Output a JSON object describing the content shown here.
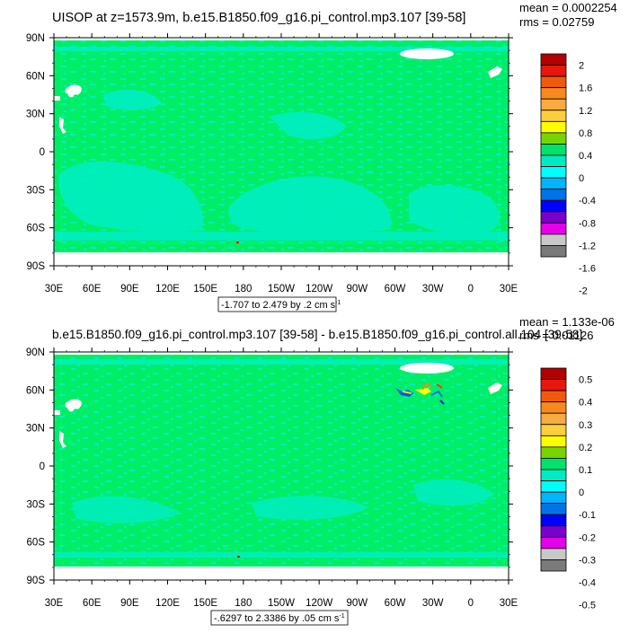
{
  "panels": [
    {
      "title": "UISOP at z=1573.9m, b.e15.B1850.f09_g16.pi_control.mp3.107 [39-58]",
      "mean_label": "mean = 0.0002254",
      "rms_label": "rms = 0.02759",
      "range_label": "-1.707 to 2.479 by .2 cm s",
      "range_exp": "-1",
      "colorbar_labels": [
        "2",
        "1.6",
        "1.2",
        "0.8",
        "0.4",
        "0",
        "-0.4",
        "-0.8",
        "-1.2",
        "-1.6",
        "-2"
      ]
    },
    {
      "title": "b.e15.B1850.f09_g16.pi_control.mp3.107 [39-58] - b.e15.B1850.f09_g16.pi_control.all.104 [39-58]",
      "mean_label": "mean = 1.133e-06",
      "rms_label": "rms = 0.01126",
      "range_label": "-.6297 to 2.3386 by .05 cm s",
      "range_exp": "-1",
      "colorbar_labels": [
        "0.5",
        "0.4",
        "0.3",
        "0.2",
        "0.1",
        "0",
        "-0.1",
        "-0.2",
        "-0.3",
        "-0.4",
        "-0.5"
      ]
    }
  ],
  "axes": {
    "lat_ticks": [
      "90N",
      "60N",
      "30N",
      "0",
      "30S",
      "60S",
      "90S"
    ],
    "lon_ticks": [
      "30E",
      "60E",
      "90E",
      "120E",
      "150E",
      "180",
      "150W",
      "120W",
      "90W",
      "60W",
      "30W",
      "0",
      "30E"
    ]
  },
  "colorbar_colors": [
    "#b20000",
    "#e8160c",
    "#f05a0c",
    "#f68a1e",
    "#f7ab40",
    "#fbcf3c",
    "#fefe00",
    "#78d600",
    "#00e36b",
    "#00ebc4",
    "#00fefe",
    "#00b4fe",
    "#0073e6",
    "#0000fe",
    "#7a00cc",
    "#e600e6",
    "#c8c8c8",
    "#7a7a7a"
  ],
  "chart_data": [
    {
      "type": "heatmap",
      "title": "UISOP at z=1573.9m, b.e15.B1850.f09_g16.pi_control.mp3.107 [39-58]",
      "xlabel": "",
      "ylabel": "",
      "xlim": [
        30,
        390
      ],
      "ylim": [
        -90,
        90
      ],
      "color_levels": [
        -2,
        2
      ],
      "range": "-1.707 to 2.479 by .2 cm s-1",
      "mean": 0.0002254,
      "rms": 0.02759
    },
    {
      "type": "heatmap",
      "title": "b.e15.B1850.f09_g16.pi_control.mp3.107 [39-58] - b.e15.B1850.f09_g16.pi_control.all.104 [39-58]",
      "xlabel": "",
      "ylabel": "",
      "xlim": [
        30,
        390
      ],
      "ylim": [
        -90,
        90
      ],
      "color_levels": [
        -0.5,
        0.5
      ],
      "range": "-.6297 to 2.3386 by .05 cm s-1",
      "mean": 1.133e-06,
      "rms": 0.01126
    }
  ]
}
